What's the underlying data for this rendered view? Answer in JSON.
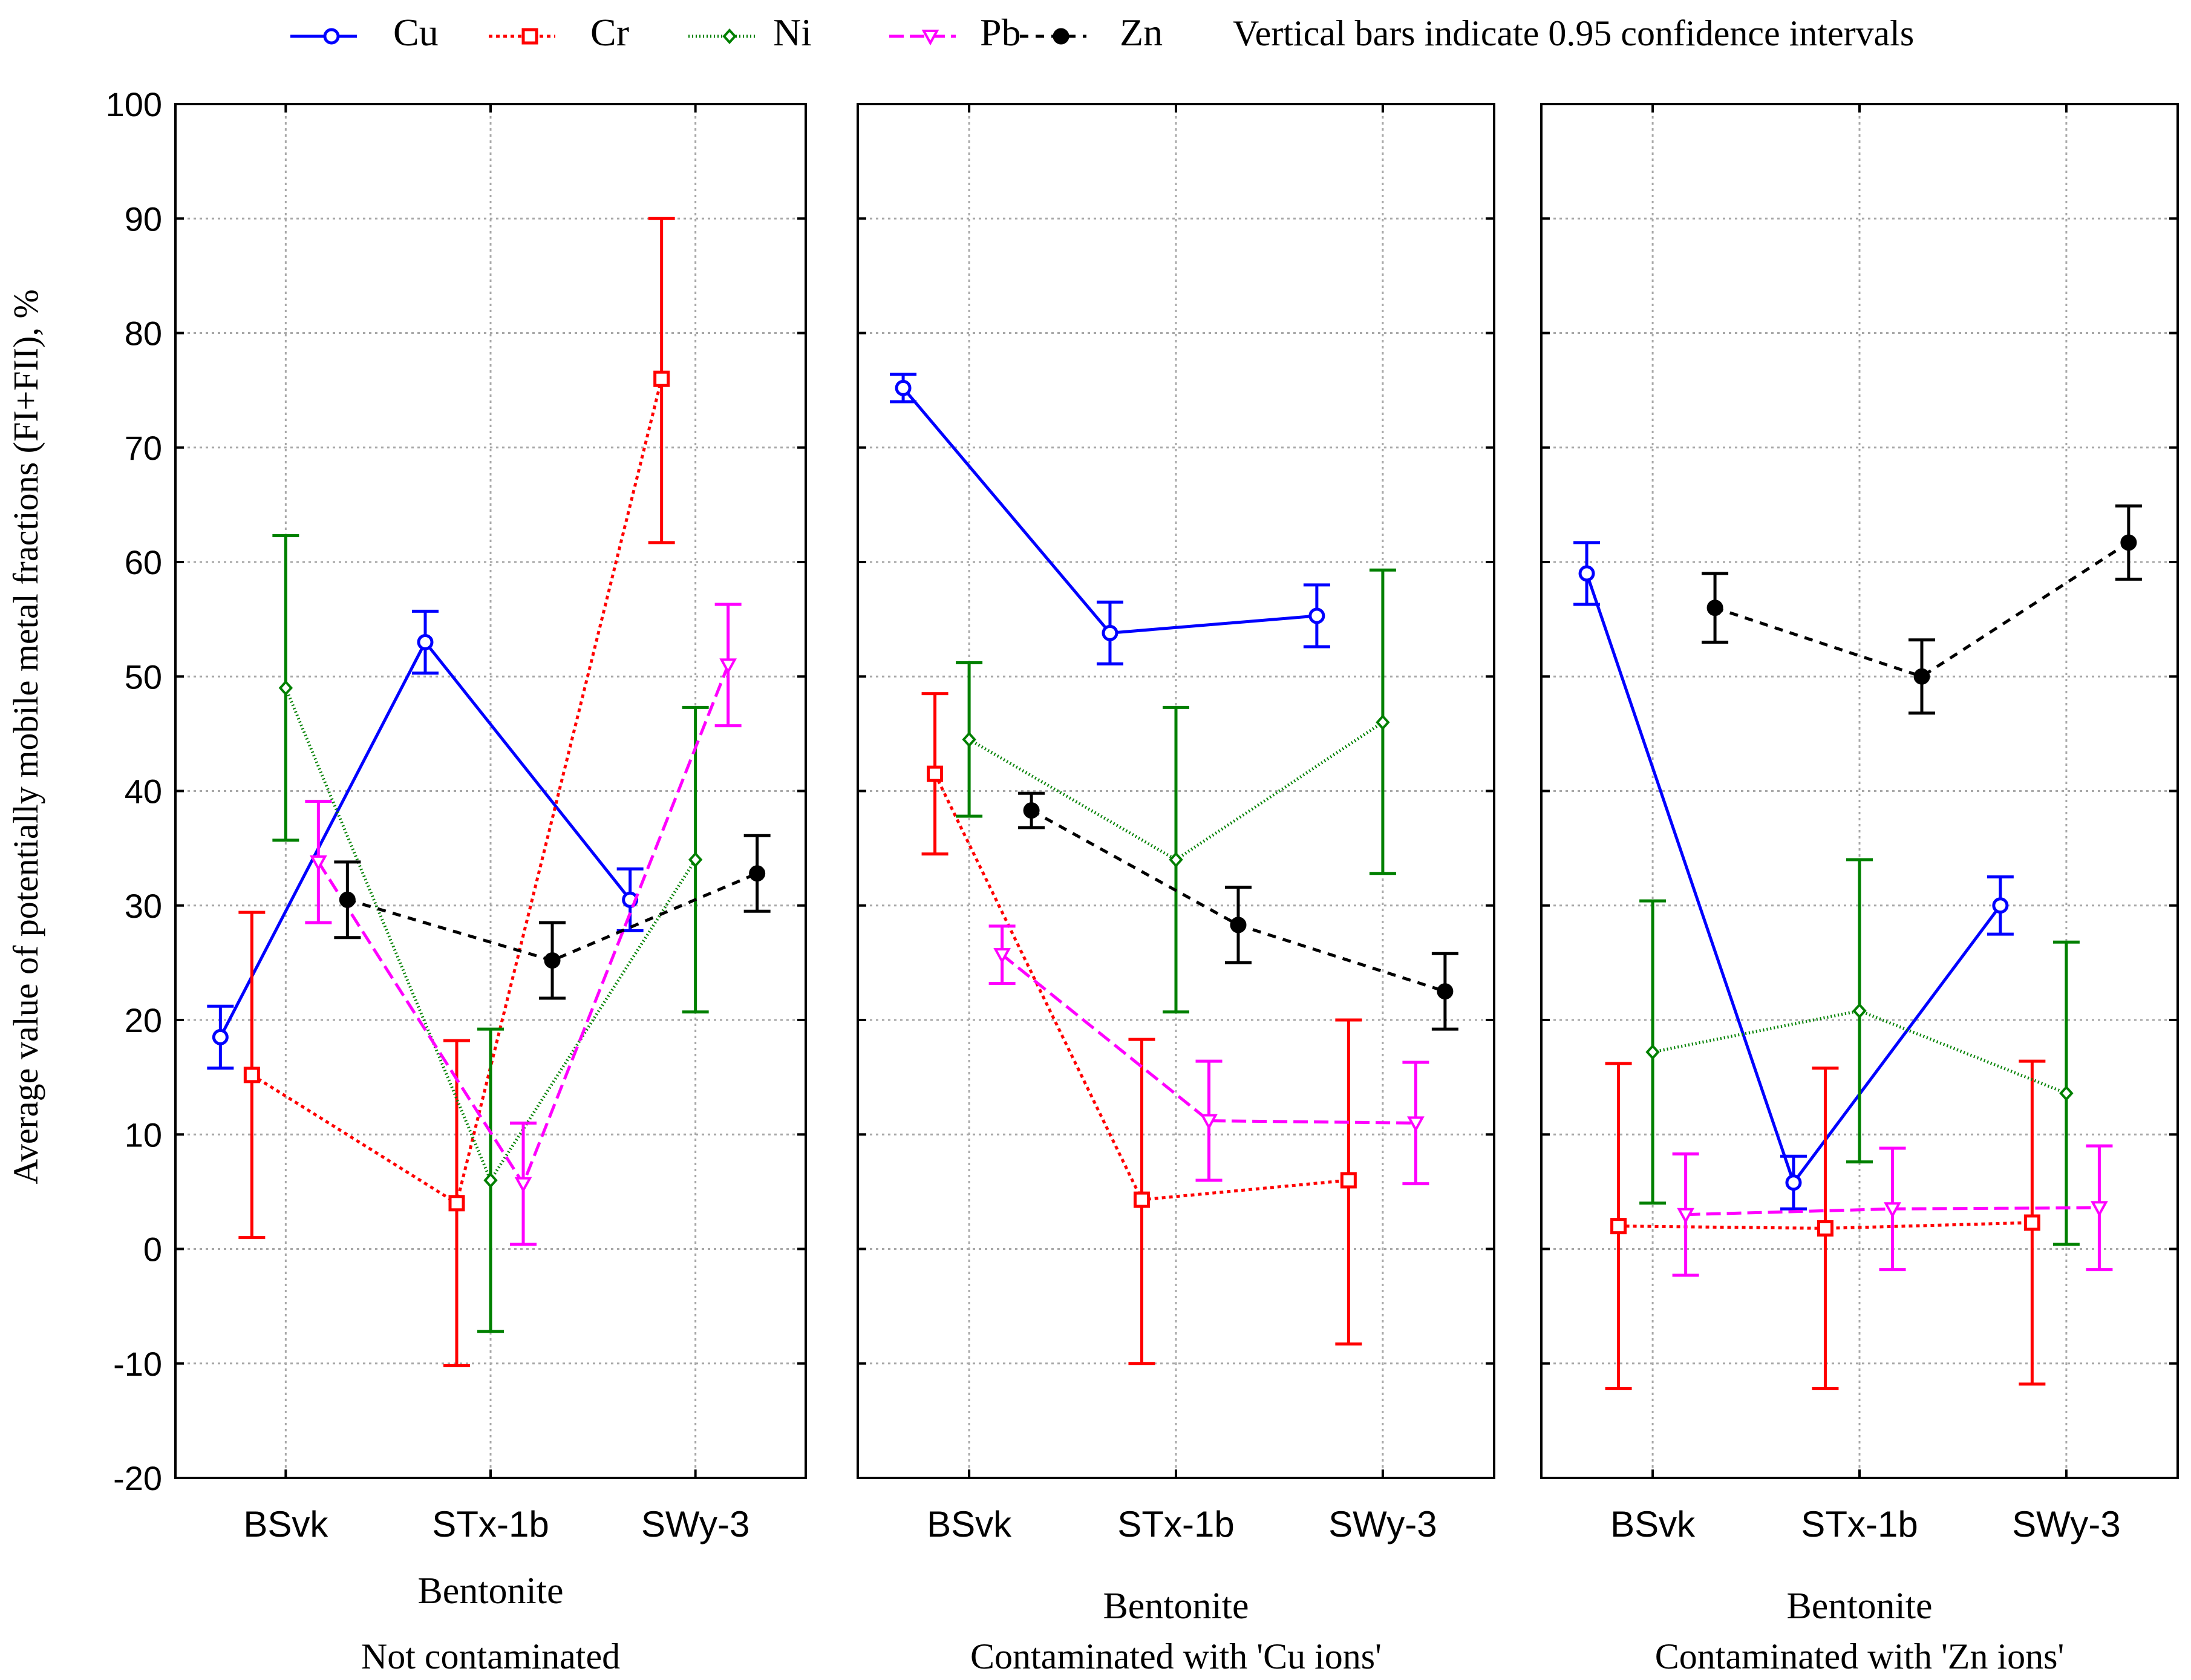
{
  "chart_data": {
    "type": "line",
    "legend": {
      "placement": "top",
      "note": "Vertical bars indicate 0.95 confidence intervals"
    },
    "y_axis": {
      "label": "Average value of potentially mobile metal fractions (FI+FII), %",
      "ylim": [
        -20,
        100
      ],
      "ticks": [
        "-20",
        "-10",
        "0",
        "10",
        "20",
        "30",
        "40",
        "50",
        "60",
        "70",
        "80",
        "90",
        "100"
      ]
    },
    "x_axis": {
      "label": "Bentonite",
      "categories": [
        "BSvk",
        "STx-1b",
        "SWy-3"
      ]
    },
    "series_styles": [
      {
        "name": "Cu",
        "color": "#0000ff",
        "dash": "none",
        "marker": "circle-open"
      },
      {
        "name": "Cr",
        "color": "#ff0000",
        "dash": "6 6",
        "marker": "square-open"
      },
      {
        "name": "Ni",
        "color": "#008000",
        "dash": "2 4",
        "marker": "diamond-open"
      },
      {
        "name": "Pb",
        "color": "#ff00ff",
        "dash": "24 10",
        "marker": "triangle-open"
      },
      {
        "name": "Zn",
        "color": "#000000",
        "dash": "14 12",
        "marker": "circle-filled"
      }
    ],
    "error_bar_colors": {
      "Cu": "#0000ff",
      "Cr": "#ff0000",
      "Ni": "#008000",
      "Pb": "#ff00ff",
      "Zn": "#000000"
    },
    "panels": [
      {
        "subtitle": "Not contaminated",
        "series": [
          {
            "name": "Cu",
            "values": [
              18.5,
              53.0,
              30.5
            ],
            "ci_low": [
              15.8,
              50.3,
              27.8
            ],
            "ci_high": [
              21.2,
              55.7,
              33.2
            ]
          },
          {
            "name": "Cr",
            "values": [
              15.2,
              4.0,
              76.0
            ],
            "ci_low": [
              1.0,
              -10.2,
              61.7
            ],
            "ci_high": [
              29.4,
              18.2,
              90.0
            ]
          },
          {
            "name": "Ni",
            "values": [
              49.0,
              6.0,
              34.0
            ],
            "ci_low": [
              35.7,
              -7.2,
              20.7
            ],
            "ci_high": [
              62.3,
              19.2,
              47.3
            ]
          },
          {
            "name": "Pb",
            "values": [
              33.8,
              5.7,
              51.0
            ],
            "ci_low": [
              28.5,
              0.4,
              45.7
            ],
            "ci_high": [
              39.1,
              11.0,
              56.3
            ]
          },
          {
            "name": "Zn",
            "values": [
              30.5,
              25.2,
              32.8
            ],
            "ci_low": [
              27.2,
              21.9,
              29.5
            ],
            "ci_high": [
              33.8,
              28.5,
              36.1
            ]
          }
        ]
      },
      {
        "subtitle": "Contaminated with 'Cu ions'",
        "series": [
          {
            "name": "Cu",
            "values": [
              75.2,
              53.8,
              55.3
            ],
            "ci_low": [
              74.0,
              51.1,
              52.6
            ],
            "ci_high": [
              76.4,
              56.5,
              58.0
            ]
          },
          {
            "name": "Cr",
            "values": [
              41.5,
              4.3,
              6.0
            ],
            "ci_low": [
              34.5,
              -10.0,
              -8.3
            ],
            "ci_high": [
              48.5,
              18.3,
              20.0
            ]
          },
          {
            "name": "Ni",
            "values": [
              44.5,
              34.0,
              46.0
            ],
            "ci_low": [
              37.8,
              20.7,
              32.8
            ],
            "ci_high": [
              51.2,
              47.3,
              59.3
            ]
          },
          {
            "name": "Pb",
            "values": [
              25.7,
              11.2,
              11.0
            ],
            "ci_low": [
              23.2,
              6.0,
              5.7
            ],
            "ci_high": [
              28.2,
              16.4,
              16.3
            ]
          },
          {
            "name": "Zn",
            "values": [
              38.3,
              28.3,
              22.5
            ],
            "ci_low": [
              36.8,
              25.0,
              19.2
            ],
            "ci_high": [
              39.8,
              31.6,
              25.8
            ]
          }
        ]
      },
      {
        "subtitle": "Contaminated with 'Zn ions'",
        "series": [
          {
            "name": "Cu",
            "values": [
              59.0,
              5.8,
              30.0
            ],
            "ci_low": [
              56.3,
              3.5,
              27.5
            ],
            "ci_high": [
              61.7,
              8.1,
              32.5
            ]
          },
          {
            "name": "Cr",
            "values": [
              2.0,
              1.8,
              2.3
            ],
            "ci_low": [
              -12.2,
              -12.2,
              -11.8
            ],
            "ci_high": [
              16.2,
              15.8,
              16.4
            ]
          },
          {
            "name": "Ni",
            "values": [
              17.2,
              20.8,
              13.6
            ],
            "ci_low": [
              4.0,
              7.6,
              0.4
            ],
            "ci_high": [
              30.4,
              34.0,
              26.8
            ]
          },
          {
            "name": "Pb",
            "values": [
              3.0,
              3.5,
              3.6
            ],
            "ci_low": [
              -2.3,
              -1.8,
              -1.8
            ],
            "ci_high": [
              8.3,
              8.8,
              9.0
            ]
          },
          {
            "name": "Zn",
            "values": [
              56.0,
              50.0,
              61.7
            ],
            "ci_low": [
              53.0,
              46.8,
              58.5
            ],
            "ci_high": [
              59.0,
              53.2,
              64.9
            ]
          }
        ]
      }
    ]
  }
}
